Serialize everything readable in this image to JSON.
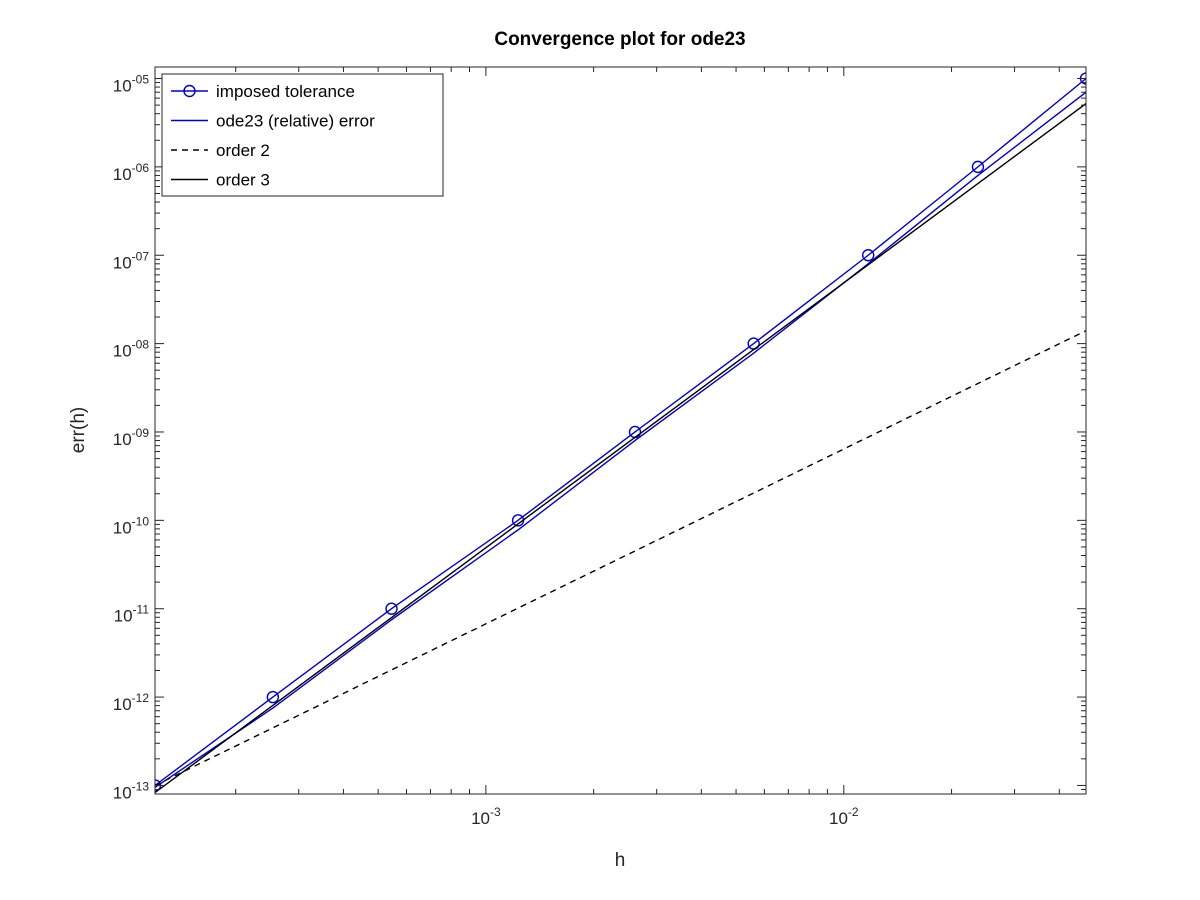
{
  "chart_data": {
    "type": "line",
    "title": "Convergence plot for ode23",
    "xlabel": "h",
    "ylabel": "err(h)",
    "xscale": "log",
    "yscale": "log",
    "xlim": [
      0.000119,
      0.0475
    ],
    "ylim": [
      8e-14,
      1.35e-05
    ],
    "grid": false,
    "legend_position": "top-left",
    "x_ticks": [
      {
        "value": 0.001,
        "base": "10",
        "exp": "-3"
      },
      {
        "value": 0.01,
        "base": "10",
        "exp": "-2"
      }
    ],
    "y_ticks": [
      {
        "value": 1e-13,
        "base": "10",
        "exp": "-13"
      },
      {
        "value": 1e-12,
        "base": "10",
        "exp": "-12"
      },
      {
        "value": 1e-11,
        "base": "10",
        "exp": "-11"
      },
      {
        "value": 1e-10,
        "base": "10",
        "exp": "-10"
      },
      {
        "value": 1e-09,
        "base": "10",
        "exp": "-09"
      },
      {
        "value": 1e-08,
        "base": "10",
        "exp": "-08"
      },
      {
        "value": 1e-07,
        "base": "10",
        "exp": "-07"
      },
      {
        "value": 1e-06,
        "base": "10",
        "exp": "-06"
      },
      {
        "value": 1e-05,
        "base": "10",
        "exp": "-05"
      }
    ],
    "series": [
      {
        "name": "imposed tolerance",
        "color": "#0000cc",
        "style": "solid",
        "marker": "circle",
        "x": [
          0.000119,
          0.000254,
          0.000545,
          0.00123,
          0.00261,
          0.0056,
          0.0117,
          0.0237,
          0.0475
        ],
        "y": [
          1e-13,
          1e-12,
          1e-11,
          1e-10,
          1e-09,
          1e-08,
          1e-07,
          1e-06,
          1e-05
        ]
      },
      {
        "name": "ode23 (relative) error",
        "color": "#0000cc",
        "style": "solid",
        "marker": "none",
        "x": [
          0.000119,
          0.000254,
          0.000545,
          0.00123,
          0.00261,
          0.0056,
          0.0117,
          0.0237,
          0.0475
        ],
        "y": [
          9.5e-14,
          7.5e-13,
          7.5e-12,
          7.8e-11,
          8e-10,
          7.8e-09,
          8e-08,
          8e-07,
          7e-06
        ]
      },
      {
        "name": "order 2",
        "color": "#000000",
        "style": "dashed",
        "marker": "none",
        "x": [
          0.000119,
          0.0475
        ],
        "y": [
          1e-13,
          1.4e-08
        ]
      },
      {
        "name": "order 3",
        "color": "#000000",
        "style": "solid",
        "marker": "none",
        "x": [
          0.000119,
          0.0475
        ],
        "y": [
          8.3e-14,
          5.2e-06
        ]
      }
    ]
  }
}
